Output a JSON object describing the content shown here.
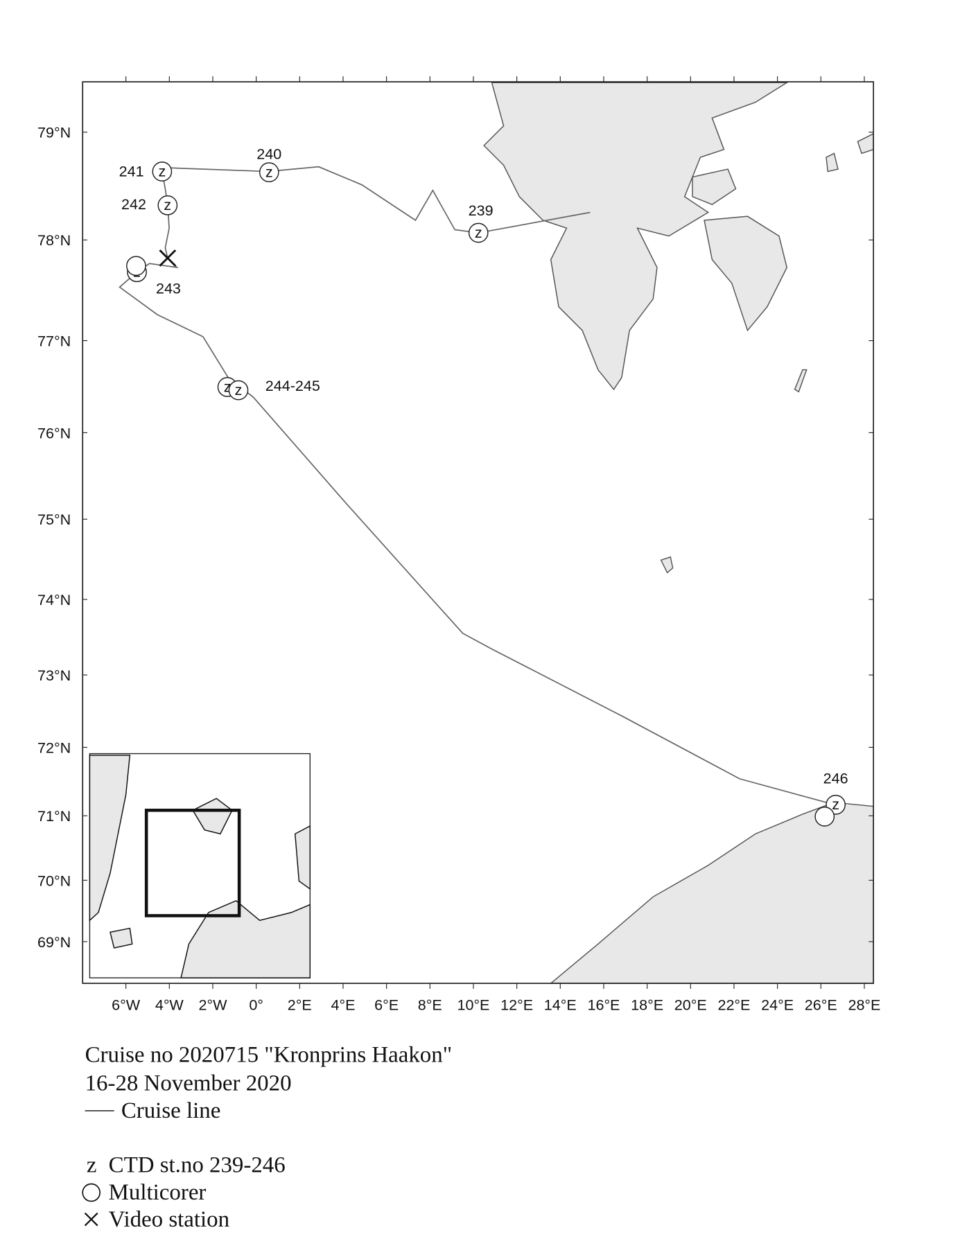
{
  "map": {
    "lat_labels": [
      "79°N",
      "78°N",
      "77°N",
      "76°N",
      "75°N",
      "74°N",
      "73°N",
      "72°N",
      "71°N",
      "70°N",
      "69°N"
    ],
    "lon_labels": [
      "6°W",
      "4°W",
      "2°W",
      "0°",
      "2°E",
      "4°E",
      "6°E",
      "8°E",
      "10°E",
      "12°E",
      "14°E",
      "16°E",
      "18°E",
      "20°E",
      "22°E",
      "24°E",
      "26°E",
      "28°E"
    ],
    "stations": [
      "239",
      "240",
      "241",
      "242",
      "243",
      "244-245",
      "246"
    ],
    "ctd_symbol": "z"
  },
  "caption": {
    "line1": "Cruise no 2020715  \"Kronprins Haakon\"",
    "line2": "16-28 November 2020"
  },
  "legend": {
    "cruise_line": "Cruise line",
    "ctd": "CTD st.no 239-246",
    "multicorer": "Multicorer",
    "video": "Video station"
  }
}
